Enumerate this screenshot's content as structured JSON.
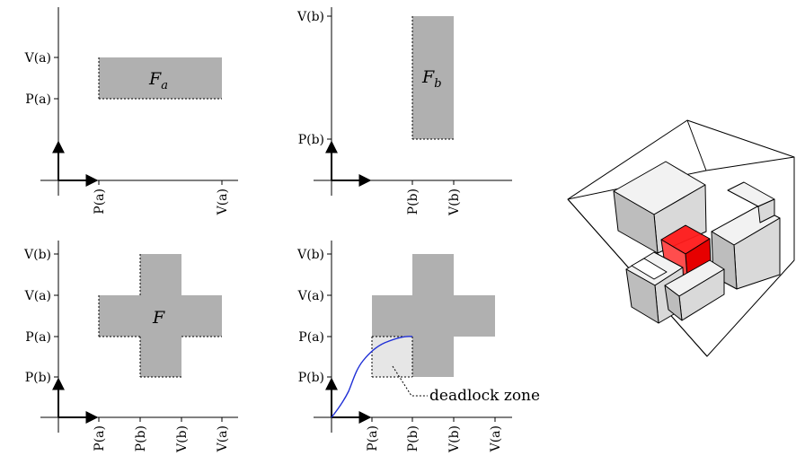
{
  "panels": {
    "top_left": {
      "y_ticks": [
        "V(a)",
        "P(a)"
      ],
      "x_ticks": [
        "P(a)",
        "V(a)"
      ],
      "region_label": "F",
      "region_subscript": "a"
    },
    "top_right": {
      "y_ticks": [
        "V(b)",
        "P(b)"
      ],
      "x_ticks": [
        "P(b)",
        "V(b)"
      ],
      "region_label": "F",
      "region_subscript": "b"
    },
    "bottom_left": {
      "y_ticks": [
        "V(b)",
        "V(a)",
        "P(a)",
        "P(b)"
      ],
      "x_ticks": [
        "P(a)",
        "P(b)",
        "V(b)",
        "V(a)"
      ],
      "region_label": "F"
    },
    "bottom_right": {
      "y_ticks": [
        "V(b)",
        "V(a)",
        "P(a)",
        "P(b)"
      ],
      "x_ticks": [
        "P(a)",
        "P(b)",
        "V(b)",
        "V(a)"
      ],
      "annotation": "deadlock zone"
    }
  },
  "colors": {
    "forbidden_region": "#b0b0b0",
    "deadlock_zone": "#e6e6e6",
    "path": "#1f2fd6",
    "cube_red": "#ff1a1a",
    "cube_face_light": "#f2f2f2",
    "cube_face_mid": "#d9d9d9",
    "cube_face_dark": "#bdbdbd"
  },
  "cube_illustration": {
    "icon": "3d-forbidden-region-cube"
  }
}
